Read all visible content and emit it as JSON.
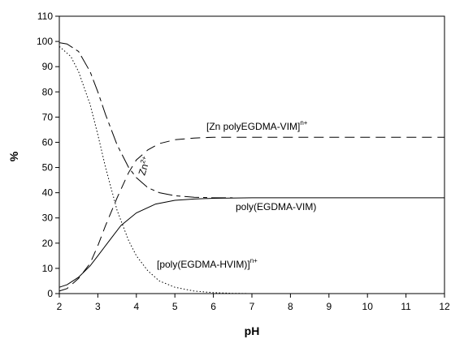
{
  "chart_data": {
    "type": "line",
    "title": "",
    "xlabel": "pH",
    "ylabel": "%",
    "xlim": [
      2,
      12
    ],
    "ylim": [
      0,
      110
    ],
    "x_ticks": [
      2,
      3,
      4,
      5,
      6,
      7,
      8,
      9,
      10,
      11,
      12
    ],
    "y_ticks": [
      0,
      10,
      20,
      30,
      40,
      50,
      60,
      70,
      80,
      90,
      100,
      110
    ],
    "grid": false,
    "legend": "none",
    "annotations": {
      "zn_complex": {
        "base": "[Zn polyEGDMA-VIM]",
        "sup": "n+"
      },
      "zn_ion": {
        "base": "Zn",
        "sup": "2+"
      },
      "free_polymer": {
        "base": "poly(EGDMA-VIM)",
        "sup": ""
      },
      "protonated": {
        "base": "[poly(EGDMA-HVIM)]",
        "sup": "n+"
      }
    },
    "series": [
      {
        "style": "dashed",
        "x": [
          2,
          2.2,
          2.5,
          2.8,
          3.0,
          3.2,
          3.5,
          3.8,
          4.0,
          4.3,
          4.6,
          5.0,
          5.5,
          6,
          7,
          8,
          9,
          10,
          11,
          12
        ],
        "y": [
          1,
          2,
          6,
          12,
          19,
          27,
          38,
          48,
          53,
          57,
          59.5,
          61,
          61.7,
          62,
          62,
          62,
          62,
          62,
          62,
          62
        ]
      },
      {
        "style": "long-dash",
        "x": [
          2,
          2.2,
          2.5,
          2.8,
          3.0,
          3.2,
          3.5,
          3.8,
          4.0,
          4.3,
          4.6,
          5.0,
          5.5,
          6.0,
          6.5
        ],
        "y": [
          99.5,
          99,
          96,
          88,
          80,
          71,
          59,
          50,
          46,
          42,
          40,
          38.8,
          38.2,
          38,
          38
        ]
      },
      {
        "style": "solid",
        "x": [
          2,
          2.2,
          2.5,
          2.8,
          3.0,
          3.3,
          3.6,
          4.0,
          4.5,
          5.0,
          5.5,
          6,
          7,
          8,
          9,
          10,
          11,
          12
        ],
        "y": [
          2.5,
          3.5,
          6.5,
          11,
          15,
          21,
          27,
          32,
          35.5,
          37,
          37.5,
          37.8,
          38,
          38,
          38,
          38,
          38,
          38
        ]
      },
      {
        "style": "dotted",
        "x": [
          2,
          2.3,
          2.5,
          2.8,
          3.0,
          3.2,
          3.5,
          3.8,
          4.0,
          4.3,
          4.6,
          5.0,
          5.5,
          6.0,
          6.5,
          7.0
        ],
        "y": [
          98,
          94,
          88,
          75,
          63,
          50,
          33,
          21,
          15,
          9,
          5,
          2.5,
          1,
          0.4,
          0.1,
          0
        ]
      }
    ]
  }
}
